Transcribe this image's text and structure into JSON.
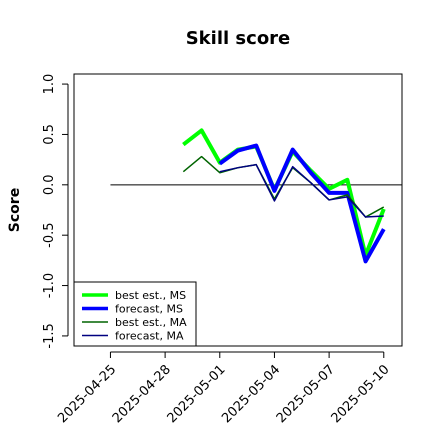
{
  "chart_data": {
    "type": "line",
    "title": "Skill score",
    "xlabel": "",
    "ylabel": "Score",
    "ylim": [
      -1.6,
      1.1
    ],
    "xlim_dates": [
      "2025-04-23",
      "2025-05-11"
    ],
    "yticks": [
      1.0,
      0.5,
      0.0,
      -0.5,
      -1.0,
      -1.5
    ],
    "ytick_labels": [
      "1.0",
      "0.5",
      "0.0",
      "-0.5",
      "-1.0",
      "-1.5"
    ],
    "xticks": [
      "2025-04-25",
      "2025-04-28",
      "2025-05-01",
      "2025-05-04",
      "2025-05-07",
      "2025-05-10"
    ],
    "xtick_labels": [
      "2025-04-25",
      "2025-04-28",
      "2025-05-01",
      "2025-05-04",
      "2025-05-07",
      "2025-05-10"
    ],
    "highlight_tick": "2025-05-01",
    "highlight_color": "#228B22",
    "reference_line": {
      "y": 0,
      "from": "2025-04-25",
      "to": "2025-05-11"
    },
    "x": [
      "2025-04-29",
      "2025-04-30",
      "2025-05-01",
      "2025-05-02",
      "2025-05-03",
      "2025-05-04",
      "2025-05-05",
      "2025-05-06",
      "2025-05-07",
      "2025-05-08",
      "2025-05-09",
      "2025-05-10"
    ],
    "series": [
      {
        "name": "best est., MS",
        "color": "#00ff00",
        "width": 4,
        "values": [
          0.4,
          0.54,
          0.22,
          0.35,
          0.38,
          -0.05,
          0.33,
          0.14,
          -0.04,
          0.05,
          -0.7,
          -0.24
        ]
      },
      {
        "name": "forecast, MS",
        "color": "#0000ff",
        "width": 4,
        "values": [
          null,
          null,
          0.21,
          0.34,
          0.39,
          -0.06,
          0.35,
          0.12,
          -0.08,
          -0.08,
          -0.76,
          -0.44
        ]
      },
      {
        "name": "best est., MA",
        "color": "#006400",
        "width": 1.5,
        "values": [
          0.13,
          0.28,
          0.12,
          0.17,
          0.2,
          -0.14,
          0.17,
          0.02,
          -0.15,
          -0.1,
          -0.32,
          -0.22
        ]
      },
      {
        "name": "forecast, MA",
        "color": "#000080",
        "width": 1.5,
        "values": [
          null,
          null,
          0.13,
          0.17,
          0.2,
          -0.16,
          0.18,
          0.02,
          -0.15,
          -0.12,
          -0.32,
          -0.31
        ]
      }
    ],
    "legend_position": "bottom-left",
    "grid": false
  }
}
